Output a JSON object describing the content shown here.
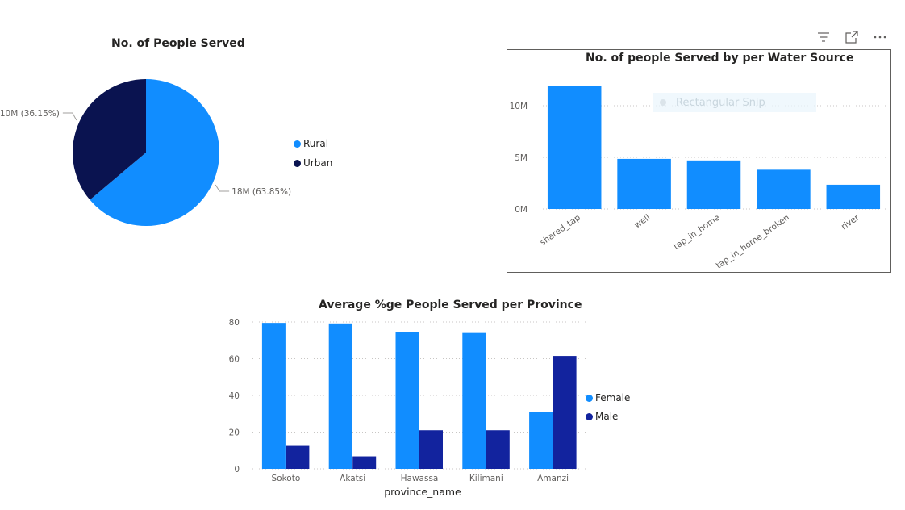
{
  "toolbar": {
    "icons": [
      "filter-icon",
      "focus-mode-icon",
      "more-options-icon"
    ]
  },
  "snip_overlay": {
    "label": "Rectangular Snip"
  },
  "chart_data": [
    {
      "id": "pie",
      "type": "pie",
      "title": "No. of People Served",
      "slices": [
        {
          "name": "Rural",
          "value": 18,
          "percent": 63.85,
          "label": "18M (63.85%)",
          "color": "#118DFF"
        },
        {
          "name": "Urban",
          "value": 10,
          "percent": 36.15,
          "label": "10M (36.15%)",
          "color": "#0A1350"
        }
      ],
      "legend": [
        "Rural",
        "Urban"
      ],
      "legend_position": "right"
    },
    {
      "id": "water-source",
      "type": "bar",
      "title": "No. of people Served by per Water Source",
      "categories": [
        "shared_tap",
        "well",
        "tap_in_home",
        "tap_in_home_broken",
        "river"
      ],
      "values": [
        11.9,
        4.85,
        4.7,
        3.8,
        2.35
      ],
      "yticks": [
        "0M",
        "5M",
        "10M"
      ],
      "ylim": [
        0,
        12.5
      ],
      "color": "#118DFF",
      "grid": true
    },
    {
      "id": "province",
      "type": "bar",
      "title": "Average %ge People Served per Province",
      "xlabel": "province_name",
      "categories": [
        "Sokoto",
        "Akatsi",
        "Hawassa",
        "Kilimani",
        "Amanzi"
      ],
      "series": [
        {
          "name": "Female",
          "values": [
            79.5,
            79.2,
            74.5,
            74.0,
            31.0
          ],
          "color": "#118DFF"
        },
        {
          "name": "Male",
          "values": [
            12.5,
            6.8,
            21.0,
            21.0,
            61.5
          ],
          "color": "#12239E"
        }
      ],
      "yticks": [
        "0",
        "20",
        "40",
        "60",
        "80"
      ],
      "ylim": [
        0,
        85
      ],
      "legend_position": "right",
      "grid": true
    }
  ]
}
